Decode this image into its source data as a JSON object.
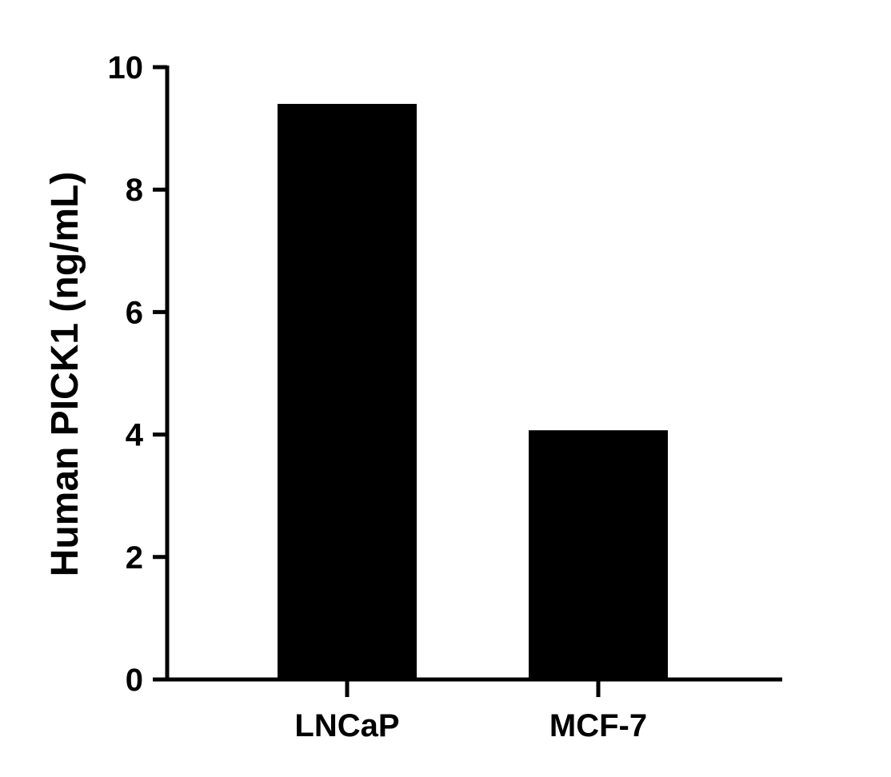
{
  "chart_data": {
    "type": "bar",
    "title": "",
    "xlabel": "",
    "ylabel": "Human PICK1 (ng/mL)",
    "categories": [
      "LNCaP",
      "MCF-7"
    ],
    "values": [
      9.4,
      4.07
    ],
    "ylim": [
      0,
      10
    ],
    "yticks": [
      0,
      2,
      4,
      6,
      8,
      10
    ],
    "ytick_labels": [
      "0",
      "2",
      "4",
      "6",
      "8",
      "10"
    ],
    "grid": false,
    "legend": "none",
    "bar_color": "#000000"
  }
}
